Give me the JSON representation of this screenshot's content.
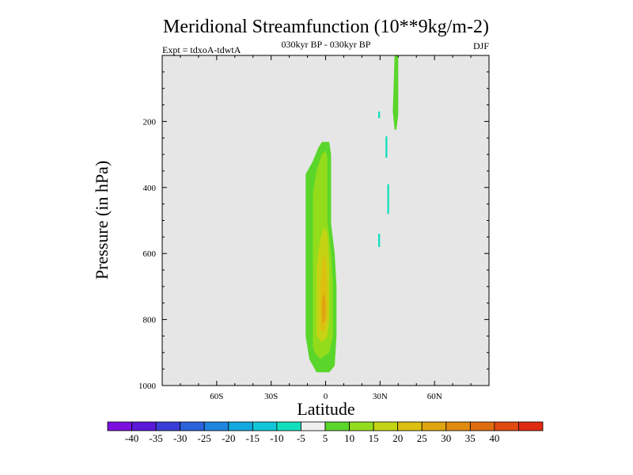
{
  "chart_data": {
    "type": "contour",
    "title": "Meridional Streamfunction (10**9kg/m-2)",
    "subtitle_left": "Expt = tdxoA-tdwtA",
    "subtitle_center": "030kyr BP - 030kyr BP",
    "subtitle_right": "DJF",
    "xlabel": "Latitude",
    "ylabel": "Pressure (in hPa)",
    "xlim": [
      -90,
      90
    ],
    "ylim": [
      1000,
      0
    ],
    "x_ticks": [
      {
        "value": -60,
        "label": "60S"
      },
      {
        "value": -30,
        "label": "30S"
      },
      {
        "value": 0,
        "label": "0"
      },
      {
        "value": 30,
        "label": "30N"
      },
      {
        "value": 60,
        "label": "60N"
      }
    ],
    "y_ticks": [
      {
        "value": 200,
        "label": "200"
      },
      {
        "value": 400,
        "label": "400"
      },
      {
        "value": 600,
        "label": "600"
      },
      {
        "value": 800,
        "label": "800"
      },
      {
        "value": 1000,
        "label": "1000"
      }
    ],
    "background_color": "#e6e6e6",
    "colorbar": {
      "colors": [
        "#7b10e0",
        "#5a18d8",
        "#3a3ed6",
        "#2c62dc",
        "#1e86e0",
        "#12a8e0",
        "#10c6d8",
        "#12e0bc",
        "#f0f0f0",
        "#5ad62a",
        "#92dc1c",
        "#c4d414",
        "#dcc010",
        "#e0a410",
        "#e08a10",
        "#e06c10",
        "#e04a10",
        "#e02a10"
      ],
      "labels": [
        "-40",
        "-35",
        "-30",
        "-25",
        "-20",
        "-15",
        "-10",
        "-5",
        "5",
        "10",
        "15",
        "20",
        "25",
        "30",
        "35",
        "40"
      ]
    },
    "regions": [
      {
        "level": "5 to 10",
        "color": "#5ad62a",
        "points": [
          [
            -11,
            1000
          ],
          [
            -11,
            360
          ],
          [
            -7,
            320
          ],
          [
            -4,
            280
          ],
          [
            -2,
            262
          ],
          [
            2,
            262
          ],
          [
            3,
            300
          ],
          [
            3,
            510
          ],
          [
            5,
            600
          ],
          [
            6,
            700
          ],
          [
            6,
            850
          ],
          [
            5,
            940
          ],
          [
            2,
            960
          ],
          [
            -5,
            960
          ],
          [
            -9,
            920
          ],
          [
            -11,
            850
          ]
        ]
      },
      {
        "level": "10 to 15",
        "color": "#92dc1c",
        "points": [
          [
            -7,
            880
          ],
          [
            -7,
            420
          ],
          [
            -5,
            350
          ],
          [
            -2,
            298
          ],
          [
            0,
            290
          ],
          [
            1,
            310
          ],
          [
            1,
            500
          ],
          [
            3,
            600
          ],
          [
            4,
            700
          ],
          [
            4,
            850
          ],
          [
            2,
            900
          ],
          [
            -3,
            920
          ],
          [
            -6,
            900
          ]
        ]
      },
      {
        "level": "15 to 20",
        "color": "#c4d414",
        "points": [
          [
            -5,
            850
          ],
          [
            -5,
            640
          ],
          [
            -3,
            560
          ],
          [
            -1,
            520
          ],
          [
            1,
            540
          ],
          [
            2,
            640
          ],
          [
            2,
            800
          ],
          [
            1,
            850
          ],
          [
            -2,
            870
          ]
        ]
      },
      {
        "level": "20 to 25",
        "color": "#dcc010",
        "points": [
          [
            -3,
            830
          ],
          [
            -3,
            700
          ],
          [
            -2,
            640
          ],
          [
            -1,
            600
          ],
          [
            0,
            620
          ],
          [
            1,
            700
          ],
          [
            1,
            800
          ],
          [
            -1,
            840
          ]
        ]
      },
      {
        "level": "25 to 30",
        "color": "#e0a410",
        "points": [
          [
            -2,
            810
          ],
          [
            -2,
            740
          ],
          [
            -1,
            720
          ],
          [
            0,
            740
          ],
          [
            0,
            790
          ],
          [
            -1,
            810
          ]
        ]
      },
      {
        "level": "5 to 10",
        "color": "#5ad62a",
        "points": [
          [
            38,
            0
          ],
          [
            40,
            0
          ],
          [
            40,
            180
          ],
          [
            39,
            225
          ],
          [
            38,
            225
          ],
          [
            37,
            170
          ]
        ]
      },
      {
        "level": "-5 to -10",
        "color": "#12e0bc",
        "points": [
          [
            33,
            245
          ],
          [
            34,
            245
          ],
          [
            34,
            310
          ],
          [
            33,
            310
          ]
        ]
      },
      {
        "level": "-5 to -10",
        "color": "#12e0bc",
        "points": [
          [
            34,
            390
          ],
          [
            35,
            390
          ],
          [
            35,
            480
          ],
          [
            34,
            480
          ]
        ]
      },
      {
        "level": "-5 to -10",
        "color": "#12e0bc",
        "points": [
          [
            29,
            540
          ],
          [
            30,
            540
          ],
          [
            30,
            580
          ],
          [
            29,
            580
          ]
        ]
      },
      {
        "level": "-5 to -10",
        "color": "#12e0bc",
        "points": [
          [
            29,
            170
          ],
          [
            30,
            170
          ],
          [
            30,
            190
          ],
          [
            29,
            190
          ]
        ]
      }
    ]
  }
}
